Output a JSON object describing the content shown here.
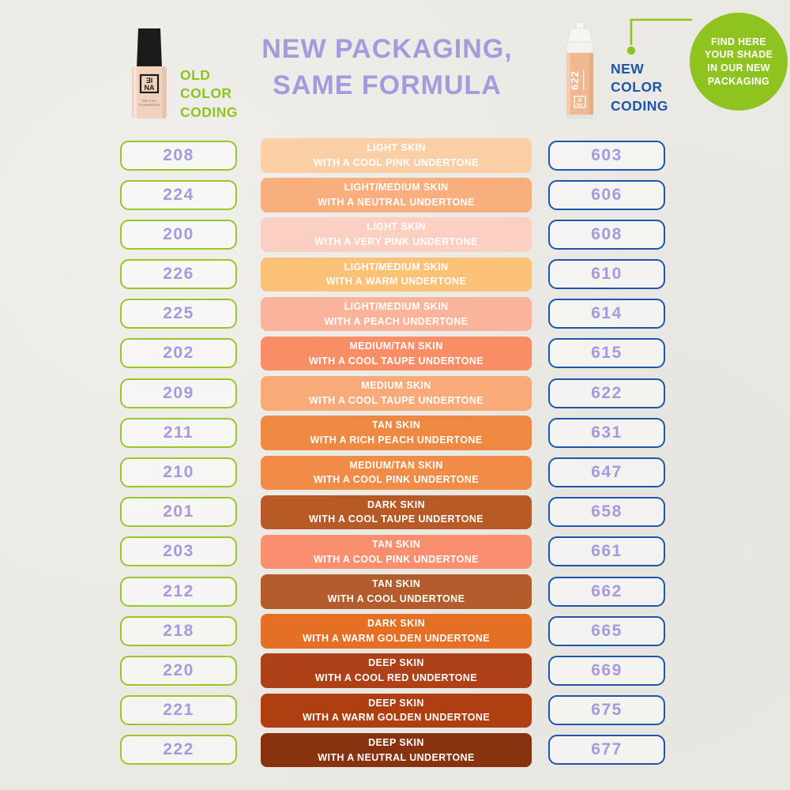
{
  "header": {
    "title": [
      "NEW PACKAGING,",
      "SAME FORMULA"
    ],
    "old_coding": [
      "OLD",
      "COLOR",
      "CODING"
    ],
    "new_coding": [
      "NEW",
      "COLOR",
      "CODING"
    ],
    "badge": [
      "FIND HERE",
      "YOUR SHADE",
      "IN OUR NEW",
      "PACKAGING"
    ],
    "old_bottle": {
      "brand_top": "ƎI",
      "brand_bottom": "NA",
      "line1": "THE 3 IN 1",
      "line2": "FOUNDATION"
    },
    "new_bottle": {
      "shade": "622",
      "brand_top": "ƎI",
      "brand_bottom": "NA"
    }
  },
  "colors": {
    "background": "#EAE9E4",
    "title_purple": "#A79ADC",
    "number_purple": "#A49BDA",
    "old_green": "#8FC31F",
    "new_blue": "#1D56A9",
    "badge_green": "#8FC31F",
    "bar_text": "#FFFFFF"
  },
  "rows": [
    {
      "old": "208",
      "new": "603",
      "line1": "LIGHT SKIN",
      "line2": "WITH A COOL PINK UNDERTONE",
      "color": "#FBCFA6"
    },
    {
      "old": "224",
      "new": "606",
      "line1": "LIGHT/MEDIUM SKIN",
      "line2": "WITH A NEUTRAL UNDERTONE",
      "color": "#F9AE7D"
    },
    {
      "old": "200",
      "new": "608",
      "line1": "LIGHT SKIN",
      "line2": "WITH A VERY PINK UNDERTONE",
      "color": "#FBD0C2"
    },
    {
      "old": "226",
      "new": "610",
      "line1": "LIGHT/MEDIUM SKIN",
      "line2": "WITH A WARM UNDERTONE",
      "color": "#FBC277"
    },
    {
      "old": "225",
      "new": "614",
      "line1": "LIGHT/MEDIUM SKIN",
      "line2": "WITH A PEACH UNDERTONE",
      "color": "#FAB49C"
    },
    {
      "old": "202",
      "new": "615",
      "line1": "MEDIUM/TAN SKIN",
      "line2": "WITH A COOL TAUPE UNDERTONE",
      "color": "#F98E66"
    },
    {
      "old": "209",
      "new": "622",
      "line1": "MEDIUM SKIN",
      "line2": "WITH A COOL TAUPE UNDERTONE",
      "color": "#F9AA79"
    },
    {
      "old": "211",
      "new": "631",
      "line1": "TAN SKIN",
      "line2": "WITH A RICH PEACH UNDERTONE",
      "color": "#EF8942"
    },
    {
      "old": "210",
      "new": "647",
      "line1": "MEDIUM/TAN SKIN",
      "line2": "WITH A COOL PINK UNDERTONE",
      "color": "#F08C48"
    },
    {
      "old": "201",
      "new": "658",
      "line1": "DARK SKIN",
      "line2": "WITH A COOL TAUPE UNDERTONE",
      "color": "#B75A26"
    },
    {
      "old": "203",
      "new": "661",
      "line1": "TAN SKIN",
      "line2": "WITH A COOL PINK UNDERTONE",
      "color": "#FA8F70"
    },
    {
      "old": "212",
      "new": "662",
      "line1": "TAN SKIN",
      "line2": "WITH A COOL UNDERTONE",
      "color": "#B45C2B"
    },
    {
      "old": "218",
      "new": "665",
      "line1": "DARK SKIN",
      "line2": "WITH A WARM GOLDEN UNDERTONE",
      "color": "#E66F26"
    },
    {
      "old": "220",
      "new": "669",
      "line1": "DEEP SKIN",
      "line2": "WITH A COOL RED UNDERTONE",
      "color": "#AE4118"
    },
    {
      "old": "221",
      "new": "675",
      "line1": "DEEP SKIN",
      "line2": "WITH A WARM GOLDEN UNDERTONE",
      "color": "#AF3F11"
    },
    {
      "old": "222",
      "new": "677",
      "line1": "DEEP SKIN",
      "line2": "WITH A NEUTRAL UNDERTONE",
      "color": "#883210"
    }
  ]
}
